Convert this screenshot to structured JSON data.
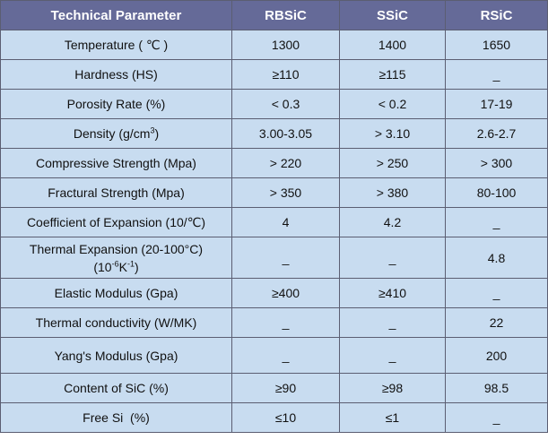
{
  "table": {
    "headers": [
      "Technical Parameter",
      "RBSiC",
      "SSiC",
      "RSiC"
    ],
    "rows": [
      {
        "param": "Temperature ( ℃ )",
        "rbsic": "1300",
        "ssic": "1400",
        "rsic": "1650"
      },
      {
        "param": "Hardness (HS)",
        "rbsic": "≥110",
        "ssic": "≥115",
        "rsic": "_"
      },
      {
        "param": "Porosity Rate (%)",
        "rbsic": "< 0.3",
        "ssic": "< 0.2",
        "rsic": "17-19"
      },
      {
        "param_pre": "Density (g/cm",
        "param_sup": "3",
        "param_post": ")",
        "rbsic": "3.00-3.05",
        "ssic": "> 3.10",
        "rsic": "2.6-2.7"
      },
      {
        "param": "Compressive Strength (Mpa)",
        "rbsic": "> 220",
        "ssic": "> 250",
        "rsic": "> 300"
      },
      {
        "param": "Fractural Strength (Mpa)",
        "rbsic": "> 350",
        "ssic": "> 380",
        "rsic": "80-100"
      },
      {
        "param": "Coefficient of Expansion (10/℃)",
        "rbsic": "4",
        "ssic": "4.2",
        "rsic": "_"
      },
      {
        "param_line1": "Thermal Expansion (20-100°C)",
        "param_line2_pre": "(10",
        "param_line2_sup1": "-6",
        "param_line2_mid": "K",
        "param_line2_sup2": "-1",
        "param_line2_post": ")",
        "rbsic": "_",
        "ssic": "_",
        "rsic": "4.8"
      },
      {
        "param": "Elastic Modulus (Gpa)",
        "rbsic": "≥400",
        "ssic": "≥410",
        "rsic": "_"
      },
      {
        "param": "Thermal conductivity (W/MK)",
        "rbsic": "_",
        "ssic": "_",
        "rsic": "22"
      },
      {
        "param": "Yang's Modulus (Gpa)",
        "rbsic": "_",
        "ssic": "_",
        "rsic": "200"
      },
      {
        "param": "Content of SiC (%)",
        "rbsic": "≥90",
        "ssic": "≥98",
        "rsic": "98.5"
      },
      {
        "param": "Free Si  (%)",
        "rbsic": "≤10",
        "ssic": "≤1",
        "rsic": "_"
      }
    ]
  }
}
